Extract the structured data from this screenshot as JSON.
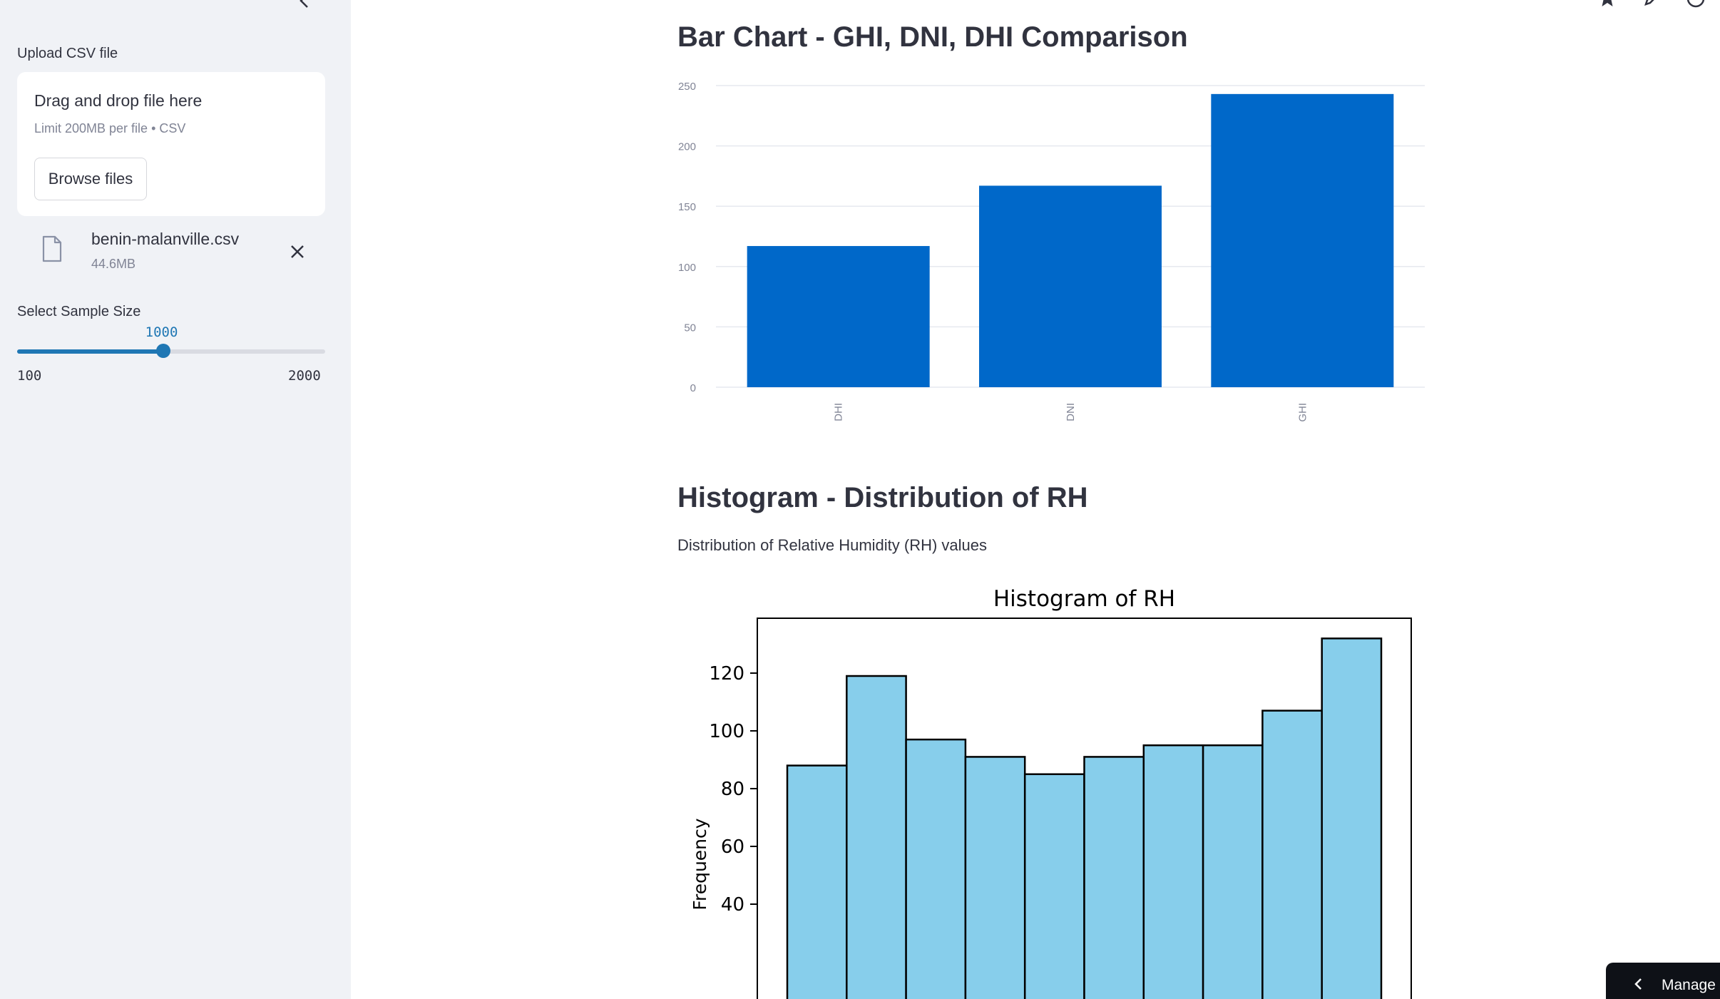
{
  "sidebar": {
    "upload_label": "Upload CSV file",
    "dropzone": {
      "title": "Drag and drop file here",
      "limit": "Limit 200MB per file • CSV",
      "browse_label": "Browse files"
    },
    "file": {
      "name": "benin-malanville.csv",
      "size": "44.6MB"
    },
    "slider": {
      "label": "Select Sample Size",
      "value": "1000",
      "min": "100",
      "max": "2000",
      "value_num": 1000,
      "min_num": 100,
      "max_num": 2000,
      "color": "#1f77b4"
    }
  },
  "main": {
    "bar_section_title": "Bar Chart - GHI, DNI, DHI Comparison",
    "hist_section_title": "Histogram - Distribution of RH",
    "hist_caption": "Distribution of Relative Humidity (RH) values"
  },
  "manage_app": {
    "label": "Manage a"
  },
  "chart_data": [
    {
      "type": "bar",
      "categories": [
        "DHI",
        "DNI",
        "GHI"
      ],
      "values": [
        117,
        167,
        243
      ],
      "ylim": [
        0,
        250
      ],
      "yticks": [
        0,
        50,
        100,
        150,
        200,
        250
      ],
      "grid": true,
      "color": "#0068c9",
      "title": "",
      "xlabel": "",
      "ylabel": ""
    },
    {
      "type": "bar",
      "title": "Histogram of RH",
      "ylabel": "Frequency",
      "xlabel": "",
      "values": [
        88,
        119,
        97,
        91,
        85,
        91,
        95,
        95,
        107,
        132
      ],
      "ylim": [
        0,
        139
      ],
      "yticks": [
        40,
        60,
        80,
        100,
        120
      ],
      "grid": false,
      "color": "#87ceeb"
    }
  ]
}
